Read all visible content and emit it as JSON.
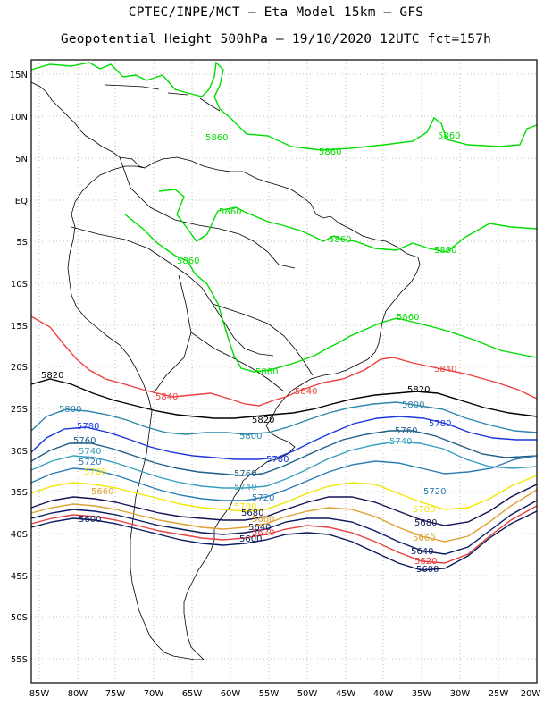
{
  "header": {
    "line1": "CPTEC/INPE/MCT –  Eta Model 15km – GFS",
    "line2": "Geopotential Height 500hPa – 19/10/2020 12UTC fct=157h"
  },
  "axes": {
    "lat_labels": [
      "15N",
      "10N",
      "5N",
      "EQ",
      "5S",
      "10S",
      "15S",
      "20S",
      "25S",
      "30S",
      "35S",
      "40S",
      "45S",
      "50S",
      "55S"
    ],
    "lon_labels": [
      "85W",
      "80W",
      "75W",
      "70W",
      "65W",
      "60W",
      "55W",
      "50W",
      "45W",
      "40W",
      "35W",
      "30W",
      "25W",
      "20W"
    ]
  },
  "map_data": {
    "type": "contour",
    "variable": "Geopotential Height 500hPa (gpm)",
    "lon_range": [
      -86,
      -20
    ],
    "lat_range": [
      17,
      -58
    ],
    "contours": [
      {
        "level": 5860,
        "label": "5860",
        "color": "#00dd00"
      },
      {
        "level": 5840,
        "label": "5840",
        "color": "#ee4040"
      },
      {
        "level": 5820,
        "label": "5820",
        "color": "#000000"
      },
      {
        "level": 5800,
        "label": "5800",
        "color": "#2e86ab"
      },
      {
        "level": 5780,
        "label": "5780",
        "color": "#1a36e0"
      },
      {
        "level": 5760,
        "label": "5760",
        "color": "#1e5f8a"
      },
      {
        "level": 5740,
        "label": "5740",
        "color": "#3aa0c0"
      },
      {
        "level": 5720,
        "label": "5720",
        "color": "#2a7cb5"
      },
      {
        "level": 5700,
        "label": "5700",
        "color": "#f2e600"
      },
      {
        "level": 5680,
        "label": "5680",
        "color": "#111155"
      },
      {
        "level": 5660,
        "label": "5660",
        "color": "#e0a030"
      },
      {
        "level": 5640,
        "label": "5640",
        "color": "#0a1a60"
      },
      {
        "level": 5620,
        "label": "5620",
        "color": "#e84040"
      },
      {
        "level": 5600,
        "label": "5600",
        "color": "#0b1a5e"
      }
    ]
  }
}
